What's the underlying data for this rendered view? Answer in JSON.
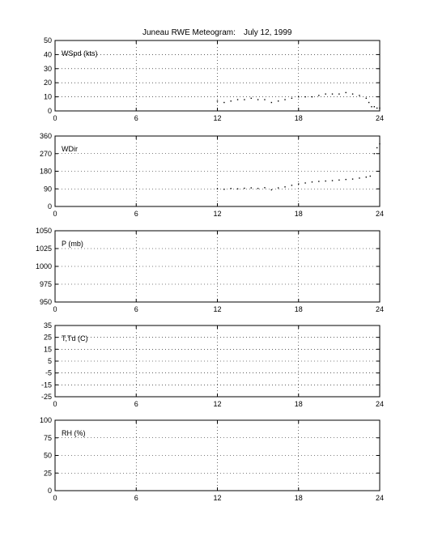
{
  "title": {
    "station": "Juneau  RWE Meteogram:",
    "date": "July  12,  1999"
  },
  "chart_data": [
    {
      "type": "scatter",
      "ylabel": "WSpd (kts)",
      "xlim": [
        0,
        24
      ],
      "ylim": [
        0,
        50
      ],
      "xticks": [
        0,
        6,
        12,
        18,
        24
      ],
      "yticks": [
        0,
        10,
        20,
        30,
        40,
        50
      ],
      "grid": true,
      "series": [
        {
          "x": [
            12.0,
            12.5,
            13.0,
            13.5,
            14.0,
            14.5,
            15.0,
            15.5,
            16.0,
            16.5,
            17.0,
            17.5,
            18.0,
            18.5,
            19.0,
            19.5,
            20.0,
            20.5,
            21.0,
            21.5,
            22.0,
            22.5,
            23.0,
            23.2,
            23.4,
            23.6,
            23.8,
            24.0
          ],
          "y": [
            7,
            6,
            7,
            8,
            8,
            9,
            8,
            8,
            6,
            7,
            8,
            9,
            10,
            10,
            10,
            11,
            12,
            12,
            12,
            13,
            12,
            11,
            9,
            6,
            3,
            3,
            2,
            2
          ]
        }
      ]
    },
    {
      "type": "scatter",
      "ylabel": "WDir",
      "xlim": [
        0,
        24
      ],
      "ylim": [
        0,
        360
      ],
      "xticks": [
        0,
        6,
        12,
        18,
        24
      ],
      "yticks": [
        0,
        90,
        180,
        270,
        360
      ],
      "grid": true,
      "series": [
        {
          "x": [
            12.0,
            12.5,
            13.0,
            13.5,
            14.0,
            14.5,
            15.0,
            15.5,
            16.0,
            16.5,
            17.0,
            17.5,
            18.0,
            18.5,
            19.0,
            19.5,
            20.0,
            20.5,
            21.0,
            21.5,
            22.0,
            22.5,
            23.0,
            23.3,
            23.6,
            23.8,
            24.0
          ],
          "y": [
            90,
            88,
            92,
            90,
            93,
            95,
            92,
            96,
            85,
            95,
            100,
            108,
            115,
            120,
            125,
            128,
            130,
            132,
            135,
            138,
            140,
            145,
            150,
            155,
            270,
            300,
            320
          ]
        }
      ]
    },
    {
      "type": "scatter",
      "ylabel": "P (mb)",
      "xlim": [
        0,
        24
      ],
      "ylim": [
        950,
        1050
      ],
      "xticks": [
        0,
        6,
        12,
        18,
        24
      ],
      "yticks": [
        950,
        975,
        1000,
        1025,
        1050
      ],
      "grid": true,
      "series": []
    },
    {
      "type": "scatter",
      "ylabel": "T,Td (C)",
      "xlim": [
        0,
        24
      ],
      "ylim": [
        -25,
        35
      ],
      "xticks": [
        0,
        6,
        12,
        18,
        24
      ],
      "yticks": [
        -25,
        -15,
        -5,
        5,
        15,
        25,
        35
      ],
      "grid": true,
      "series": []
    },
    {
      "type": "scatter",
      "ylabel": "RH (%)",
      "xlim": [
        0,
        24
      ],
      "ylim": [
        0,
        100
      ],
      "xticks": [
        0,
        6,
        12,
        18,
        24
      ],
      "yticks": [
        0,
        25,
        50,
        75,
        100
      ],
      "grid": true,
      "series": []
    }
  ]
}
